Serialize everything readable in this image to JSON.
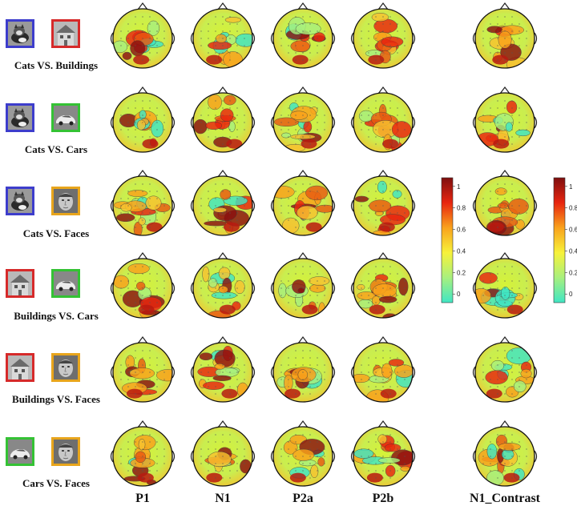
{
  "columns": [
    "P1",
    "N1",
    "P2a",
    "P2b",
    "N1_Contrast"
  ],
  "rows": [
    {
      "label": "Cats VS. Buildings",
      "left": "cat",
      "right": "building",
      "left_color": "#3d3dcc",
      "right_color": "#d62a2a"
    },
    {
      "label": "Cats VS. Cars",
      "left": "cat",
      "right": "car",
      "left_color": "#3d3dcc",
      "right_color": "#34c234"
    },
    {
      "label": "Cats VS. Faces",
      "left": "cat",
      "right": "face",
      "left_color": "#3d3dcc",
      "right_color": "#e8a51c"
    },
    {
      "label": "Buildings VS. Cars",
      "left": "building",
      "right": "car",
      "left_color": "#d62a2a",
      "right_color": "#34c234"
    },
    {
      "label": "Buildings VS. Faces",
      "left": "building",
      "right": "face",
      "left_color": "#d62a2a",
      "right_color": "#e8a51c"
    },
    {
      "label": "Cars VS. Faces",
      "left": "car",
      "right": "face",
      "left_color": "#34c234",
      "right_color": "#e8a51c"
    }
  ],
  "colorbar": {
    "ticks": [
      "1",
      "0.8",
      "0.6",
      "0.4",
      "0.2",
      "0"
    ],
    "values": [
      1,
      0.8,
      0.6,
      0.4,
      0.2,
      0
    ],
    "range": [
      -0.08,
      1.08
    ],
    "colors": [
      "#40e6c4",
      "#a8f07e",
      "#f7f23a",
      "#f9a21c",
      "#e8250f",
      "#7e0f0f"
    ]
  }
}
